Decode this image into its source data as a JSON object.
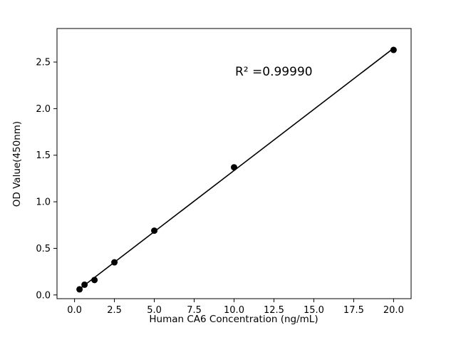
{
  "chart_data": {
    "type": "scatter",
    "title": "",
    "xlabel": "Human CA6 Concentration (ng/mL)",
    "ylabel": "OD Value(450nm)",
    "annotation": "R² =0.99990",
    "x": [
      0.313,
      0.625,
      1.25,
      2.5,
      5,
      10,
      20
    ],
    "y": [
      0.06,
      0.11,
      0.16,
      0.35,
      0.69,
      1.37,
      2.63
    ],
    "fit_type": "linear",
    "xlim": [
      -1.1,
      21.1
    ],
    "ylim": [
      -0.04,
      2.86
    ],
    "xticks": [
      0,
      2.5,
      5,
      7.5,
      10,
      12.5,
      15,
      17.5,
      20
    ],
    "yticks": [
      0,
      0.5,
      1,
      1.5,
      2,
      2.5
    ],
    "point_color": "#000000",
    "line_color": "#000000",
    "axis_color": "#000000",
    "background_color": "#ffffff",
    "grid": false,
    "legend_position": "none"
  }
}
